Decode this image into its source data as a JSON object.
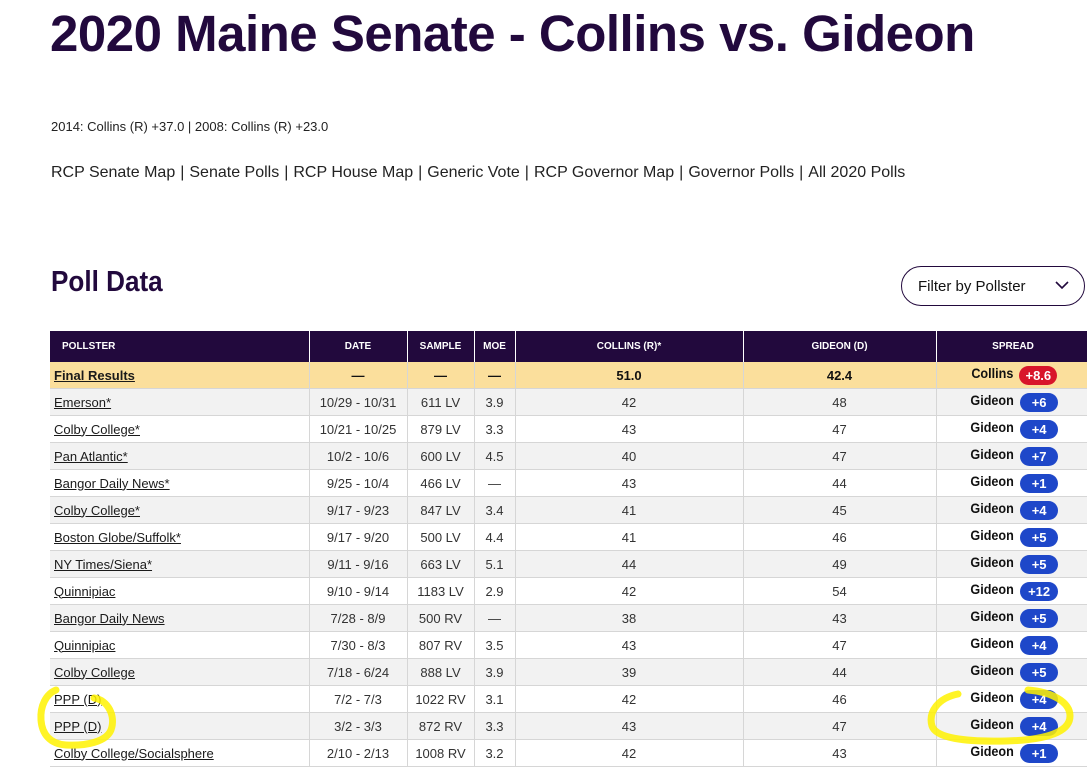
{
  "page": {
    "title": "2020 Maine Senate - Collins vs. Gideon",
    "history": "2014: Collins (R) +37.0 | 2008: Collins (R) +23.0",
    "links": [
      "RCP Senate Map",
      "Senate Polls",
      "RCP House Map",
      "Generic Vote",
      "RCP Governor Map",
      "Governor Polls",
      "All 2020 Polls"
    ],
    "link_separator": "|"
  },
  "poll_section": {
    "title": "Poll Data",
    "filter_label": "Filter by Pollster"
  },
  "table": {
    "headers": [
      "POLLSTER",
      "DATE",
      "SAMPLE",
      "MOE",
      "COLLINS (R)*",
      "GIDEON (D)",
      "SPREAD"
    ],
    "final": {
      "pollster": "Final Results",
      "date": "—",
      "sample": "—",
      "moe": "—",
      "collins": "51.0",
      "gideon": "42.4",
      "spread_name": "Collins",
      "spread_value": "+8.6",
      "spread_party": "R"
    },
    "rows": [
      {
        "pollster": "Emerson*",
        "date": "10/29 - 10/31",
        "sample": "611 LV",
        "moe": "3.9",
        "collins": "42",
        "gideon": "48",
        "spread_name": "Gideon",
        "spread_value": "+6",
        "spread_party": "D"
      },
      {
        "pollster": "Colby College*",
        "date": "10/21 - 10/25",
        "sample": "879 LV",
        "moe": "3.3",
        "collins": "43",
        "gideon": "47",
        "spread_name": "Gideon",
        "spread_value": "+4",
        "spread_party": "D"
      },
      {
        "pollster": "Pan Atlantic*",
        "date": "10/2 - 10/6",
        "sample": "600 LV",
        "moe": "4.5",
        "collins": "40",
        "gideon": "47",
        "spread_name": "Gideon",
        "spread_value": "+7",
        "spread_party": "D"
      },
      {
        "pollster": "Bangor Daily News*",
        "date": "9/25 - 10/4",
        "sample": "466 LV",
        "moe": "—",
        "collins": "43",
        "gideon": "44",
        "spread_name": "Gideon",
        "spread_value": "+1",
        "spread_party": "D"
      },
      {
        "pollster": "Colby College*",
        "date": "9/17 - 9/23",
        "sample": "847 LV",
        "moe": "3.4",
        "collins": "41",
        "gideon": "45",
        "spread_name": "Gideon",
        "spread_value": "+4",
        "spread_party": "D"
      },
      {
        "pollster": "Boston Globe/Suffolk*",
        "date": "9/17 - 9/20",
        "sample": "500 LV",
        "moe": "4.4",
        "collins": "41",
        "gideon": "46",
        "spread_name": "Gideon",
        "spread_value": "+5",
        "spread_party": "D"
      },
      {
        "pollster": "NY Times/Siena*",
        "date": "9/11 - 9/16",
        "sample": "663 LV",
        "moe": "5.1",
        "collins": "44",
        "gideon": "49",
        "spread_name": "Gideon",
        "spread_value": "+5",
        "spread_party": "D"
      },
      {
        "pollster": "Quinnipiac",
        "date": "9/10 - 9/14",
        "sample": "1183 LV",
        "moe": "2.9",
        "collins": "42",
        "gideon": "54",
        "spread_name": "Gideon",
        "spread_value": "+12",
        "spread_party": "D"
      },
      {
        "pollster": "Bangor Daily News",
        "date": "7/28 - 8/9",
        "sample": "500 RV",
        "moe": "—",
        "collins": "38",
        "gideon": "43",
        "spread_name": "Gideon",
        "spread_value": "+5",
        "spread_party": "D"
      },
      {
        "pollster": "Quinnipiac",
        "date": "7/30 - 8/3",
        "sample": "807 RV",
        "moe": "3.5",
        "collins": "43",
        "gideon": "47",
        "spread_name": "Gideon",
        "spread_value": "+4",
        "spread_party": "D"
      },
      {
        "pollster": "Colby College",
        "date": "7/18 - 6/24",
        "sample": "888 LV",
        "moe": "3.9",
        "collins": "39",
        "gideon": "44",
        "spread_name": "Gideon",
        "spread_value": "+5",
        "spread_party": "D"
      },
      {
        "pollster": "PPP (D)",
        "date": "7/2 - 7/3",
        "sample": "1022 RV",
        "moe": "3.1",
        "collins": "42",
        "gideon": "46",
        "spread_name": "Gideon",
        "spread_value": "+4",
        "spread_party": "D"
      },
      {
        "pollster": "PPP (D)",
        "date": "3/2 - 3/3",
        "sample": "872 RV",
        "moe": "3.3",
        "collins": "43",
        "gideon": "47",
        "spread_name": "Gideon",
        "spread_value": "+4",
        "spread_party": "D"
      },
      {
        "pollster": "Colby College/Socialsphere",
        "date": "2/10 - 2/13",
        "sample": "1008 RV",
        "moe": "3.2",
        "collins": "42",
        "gideon": "43",
        "spread_name": "Gideon",
        "spread_value": "+1",
        "spread_party": "D"
      }
    ]
  },
  "colors": {
    "header_bg": "#22093d",
    "final_row_bg": "#fbdf9c",
    "dem_badge": "#1e47c9",
    "rep_badge": "#d8152a",
    "highlight": "#fff200"
  },
  "icons": {
    "filter_chevron": "chevron-down-icon"
  }
}
